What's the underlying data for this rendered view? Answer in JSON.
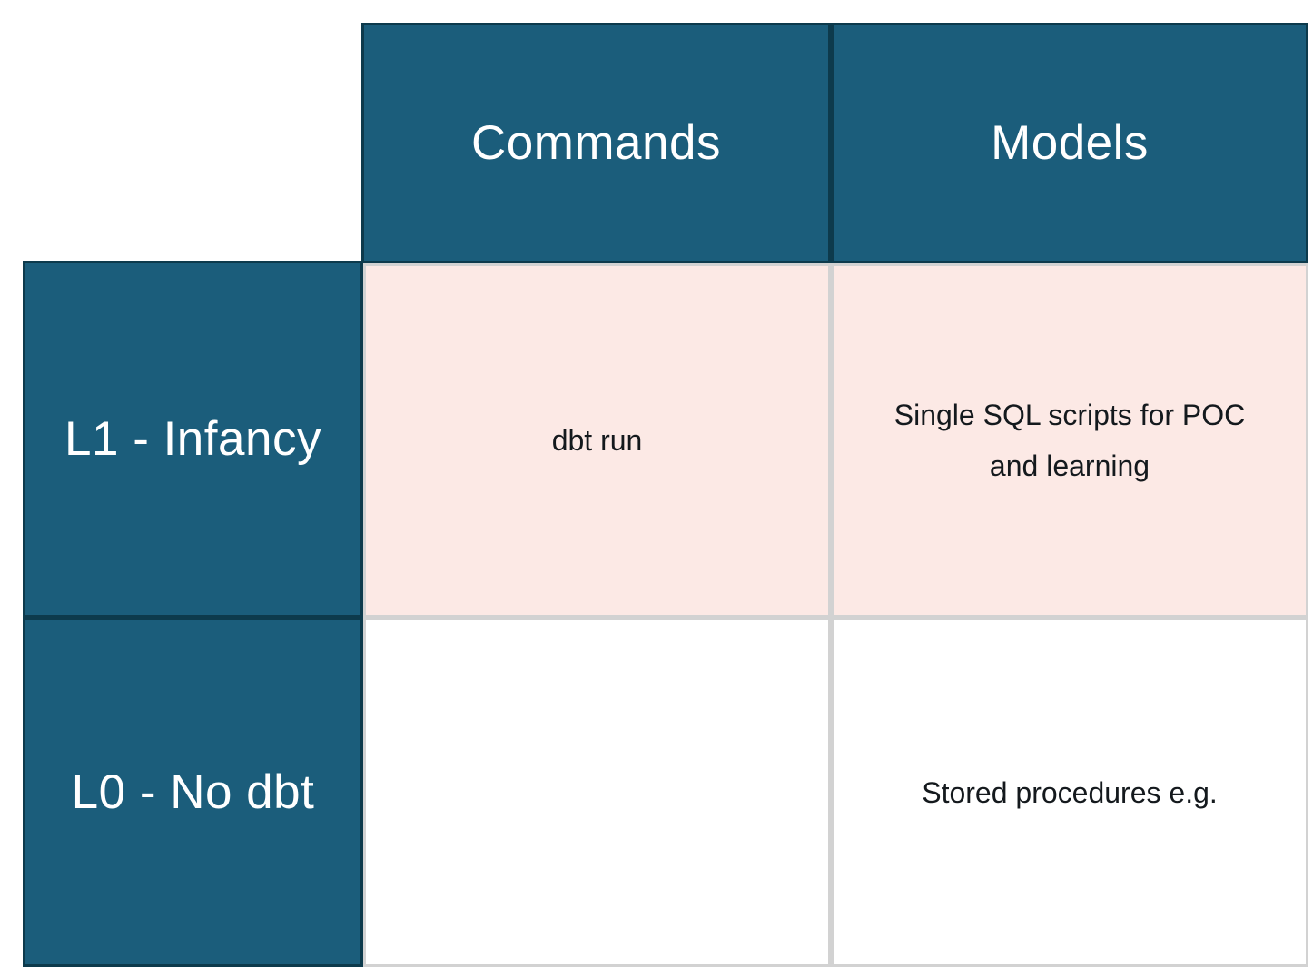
{
  "colors": {
    "header_bg": "#1b5d7b",
    "header_border": "#0d3a4c",
    "header_text": "#ffffff",
    "l1_row_bg": "#fce9e5",
    "l0_row_bg": "#ffffff",
    "grid_border": "#d2d2d2",
    "body_text": "#14191d",
    "page_bg": "#ffffff"
  },
  "table": {
    "column_headers": [
      "Commands",
      "Models"
    ],
    "rows": [
      {
        "label": "L1 - Infancy",
        "cells": [
          "dbt run",
          "Single SQL scripts for POC\nand learning"
        ]
      },
      {
        "label": "L0 - No dbt",
        "cells": [
          "",
          "Stored procedures e.g."
        ]
      }
    ]
  }
}
